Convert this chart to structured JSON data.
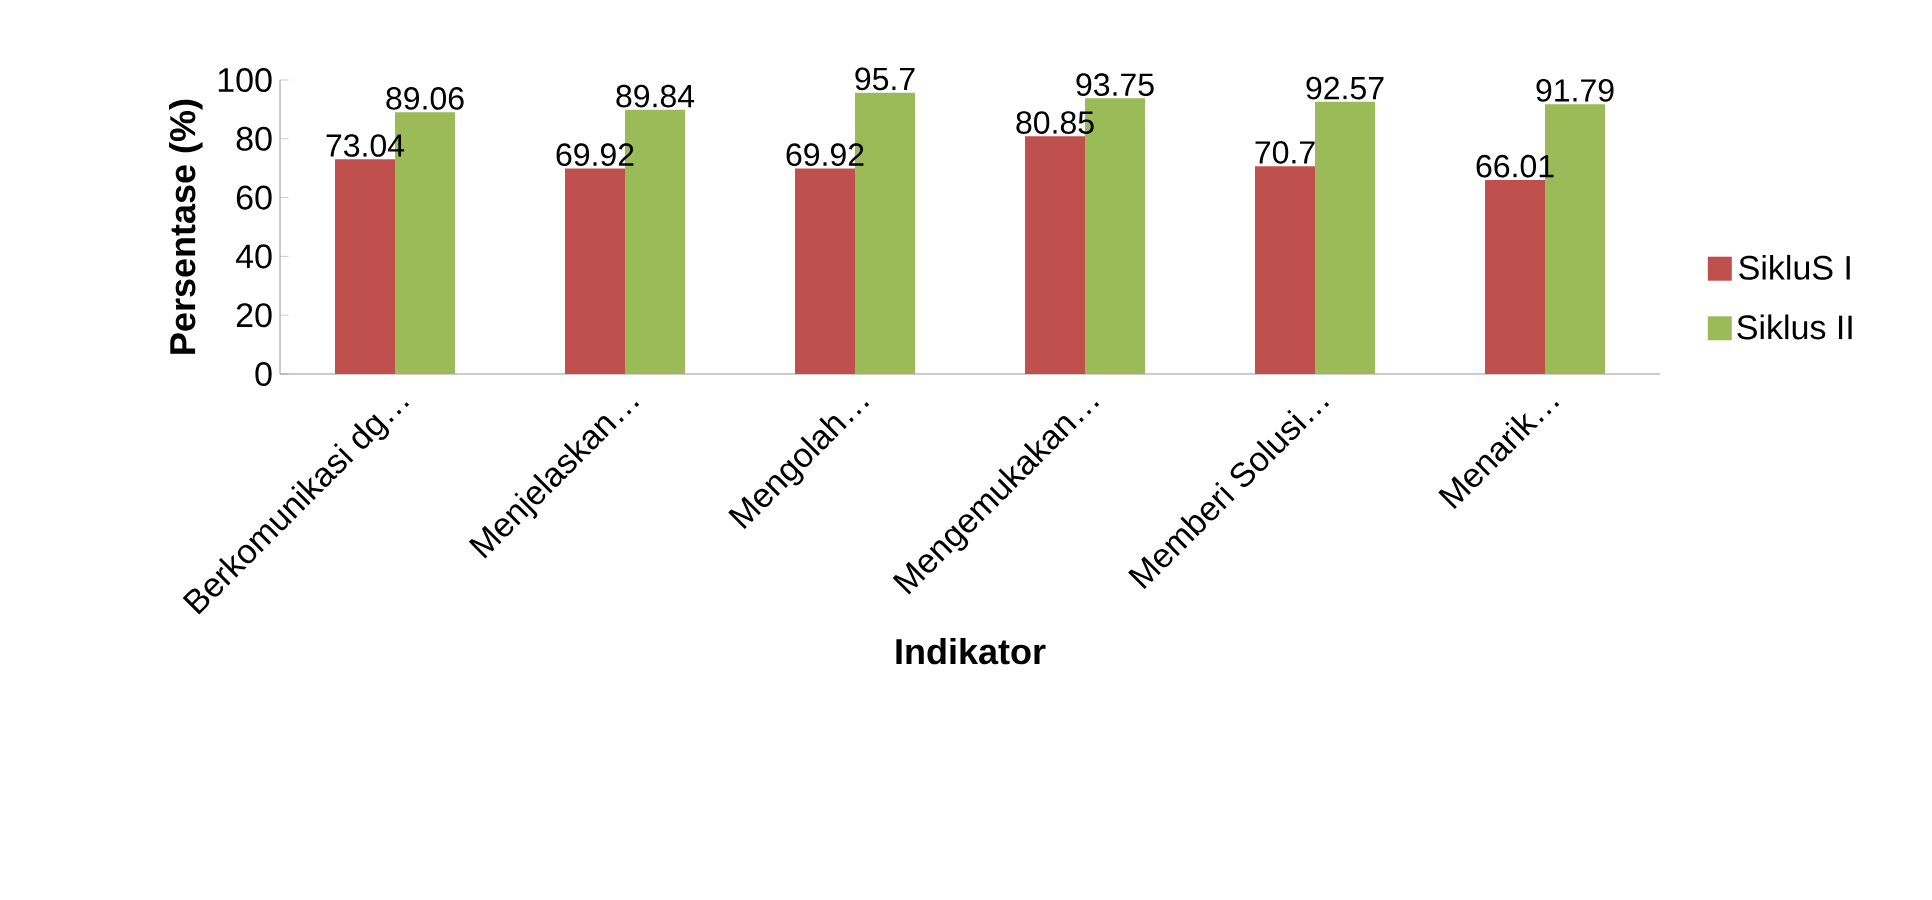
{
  "chart_data": {
    "type": "bar",
    "xlabel": "Indikator",
    "ylabel": "Persentase (%)",
    "categories": [
      "Berkomunikasi dg…",
      "Menjelaskan…",
      "Mengolah…",
      "Mengemukakan…",
      "Memberi Solusi…",
      "Menarik…"
    ],
    "series": [
      {
        "name": "SikluS I",
        "color": "#c0504d",
        "values": [
          73.04,
          69.92,
          69.92,
          80.85,
          70.7,
          66.01
        ]
      },
      {
        "name": "Siklus II",
        "color": "#9bbb59",
        "values": [
          89.06,
          89.84,
          95.7,
          93.75,
          92.57,
          91.79
        ]
      }
    ],
    "ylim": [
      0,
      100
    ],
    "yticks": [
      0,
      20,
      40,
      60,
      80,
      100
    ],
    "data_labels": true,
    "legend": "right"
  }
}
